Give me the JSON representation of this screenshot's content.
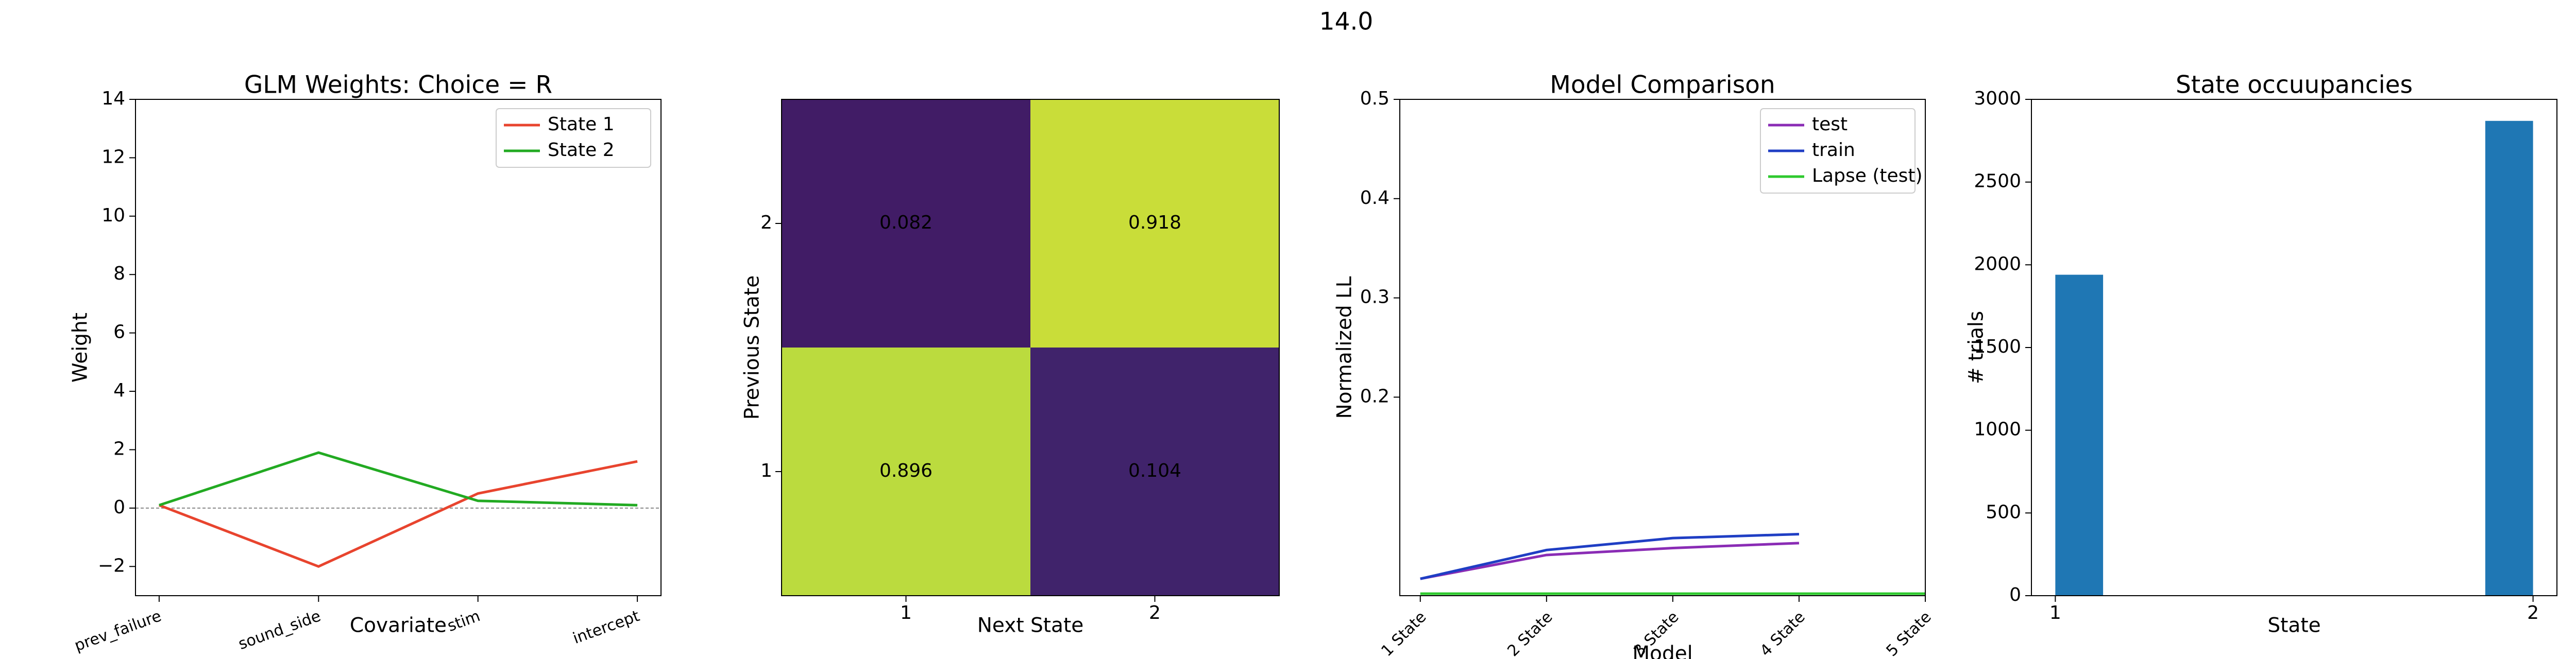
{
  "title": "14.0",
  "chart_data": [
    {
      "type": "line",
      "title": "GLM Weights: Choice = R",
      "xlabel": "Covariate",
      "ylabel": "Weight",
      "categories": [
        "prev_failure",
        "sound_side",
        "stim",
        "intercept"
      ],
      "series": [
        {
          "name": "State 1",
          "color": "#e8442e",
          "values": [
            0.1,
            -2,
            0.5,
            1.6
          ]
        },
        {
          "name": "State 2",
          "color": "#22aa22",
          "values": [
            0.1,
            1.9,
            0.25,
            0.1
          ]
        }
      ],
      "hline": 0,
      "ylim": [
        -3,
        14
      ],
      "yticks": [
        {
          "value": -2,
          "label": "−2"
        },
        0,
        2,
        4,
        6,
        8,
        10,
        12,
        14
      ],
      "legend": "upper right"
    },
    {
      "type": "heatmap",
      "xlabel": "Next State",
      "ylabel": "Previous State",
      "x_categories": [
        1,
        2
      ],
      "y_categories": [
        1,
        2
      ],
      "values": [
        [
          0.896,
          0.104
        ],
        [
          0.082,
          0.918
        ]
      ],
      "cmap": "viridis",
      "clim": [
        0,
        1
      ]
    },
    {
      "type": "line",
      "title": "Model Comparison",
      "xlabel": "Model",
      "ylabel": "Normalized LL",
      "categories": [
        "1 State",
        "2 State",
        "3 State",
        "4 State",
        "5 State"
      ],
      "series": [
        {
          "name": "test",
          "color": "#8a2cb5",
          "values": [
            0.017,
            0.041,
            0.048,
            0.053,
            null
          ]
        },
        {
          "name": "train",
          "color": "#1f3ec4",
          "values": [
            0.017,
            0.046,
            0.058,
            0.062,
            null
          ]
        },
        {
          "name": "Lapse (test)",
          "color": "#2ec92e",
          "values": [
            0.002,
            0.002,
            0.002,
            0.002,
            0.002
          ]
        }
      ],
      "ylim": [
        0,
        0.5
      ],
      "yticks": [
        0.2,
        0.3,
        0.4,
        0.5
      ],
      "legend": "upper right",
      "xrotate": true
    },
    {
      "type": "histogram",
      "title": "State occuupancies",
      "xlabel": "State",
      "ylabel": "# trials",
      "color": "#1f77b4",
      "bins": [
        1,
        1.1,
        1.2,
        1.3,
        1.4,
        1.5,
        1.6,
        1.7,
        1.8,
        1.9,
        2
      ],
      "counts": [
        1940,
        0,
        0,
        0,
        0,
        0,
        0,
        0,
        0,
        2870
      ],
      "xlim": [
        0.95,
        2.05
      ],
      "xticks": [
        1,
        2
      ],
      "ylim": [
        0,
        3000
      ],
      "yticks": [
        0,
        500,
        1000,
        1500,
        2000,
        2500,
        3000
      ]
    }
  ]
}
